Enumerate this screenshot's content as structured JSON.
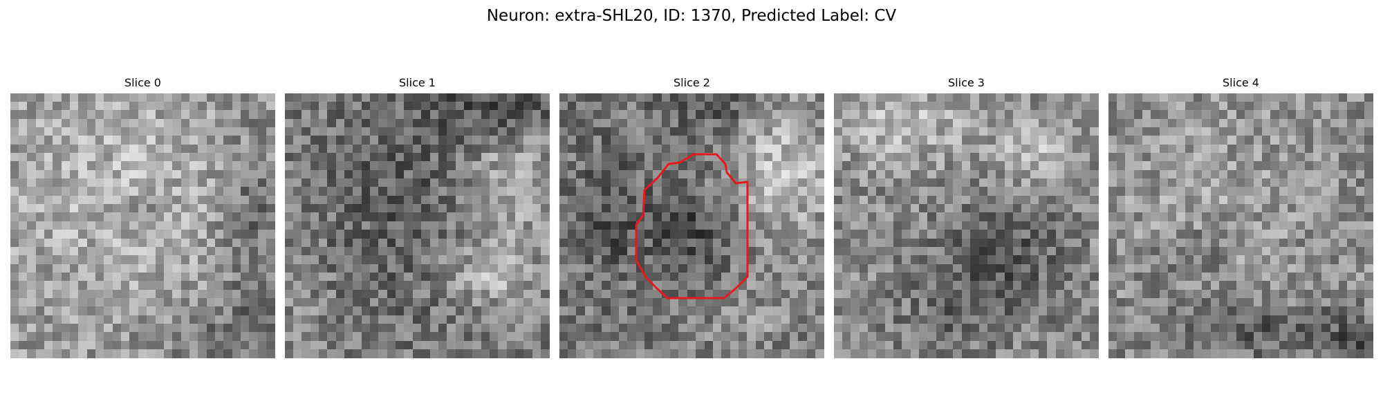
{
  "figure": {
    "title": "Neuron: extra-SHL20, ID: 1370, Predicted Label: CV"
  },
  "slices": [
    {
      "label": "Slice 0",
      "seed": 11
    },
    {
      "label": "Slice 1",
      "seed": 23
    },
    {
      "label": "Slice 2",
      "seed": 37,
      "has_outline": true
    },
    {
      "label": "Slice 3",
      "seed": 53
    },
    {
      "label": "Slice 4",
      "seed": 71
    }
  ],
  "colors": {
    "outline": "#e8191b",
    "colormap": "gray"
  }
}
